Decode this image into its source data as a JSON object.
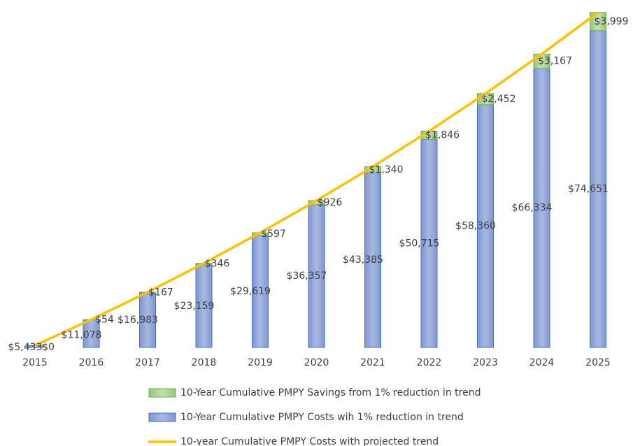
{
  "chart_data": {
    "type": "bar-line",
    "categories": [
      "2015",
      "2016",
      "2017",
      "2018",
      "2019",
      "2020",
      "2021",
      "2022",
      "2023",
      "2024",
      "2025"
    ],
    "series": [
      {
        "name": "10-Year Cumulative PMPY Savings from 1% reduction in trend",
        "color": "#a9d18e",
        "stack": "segment",
        "values": [
          0,
          54,
          167,
          346,
          597,
          926,
          1340,
          1846,
          2452,
          3167,
          3999
        ],
        "value_labels": [
          "$0",
          "$54",
          "$167",
          "$346",
          "$597",
          "$926",
          "$1,340",
          "$1,846",
          "$2,452",
          "$3,167",
          "$3,999"
        ]
      },
      {
        "name": "10-Year Cumulative PMPY Costs wih 1% reduction in trend",
        "color": "#8fa5d8",
        "stack": "base",
        "values": [
          5433,
          11078,
          16983,
          23159,
          29619,
          36357,
          43385,
          50715,
          58360,
          66334,
          74651
        ],
        "value_labels": [
          "$5,433",
          "$11,078",
          "$16,983",
          "$23,159",
          "$29,619",
          "$36,357",
          "$43,385",
          "$50,715",
          "$58,360",
          "$66,334",
          "$74,651"
        ]
      },
      {
        "name": "10-year Cumulative PMPY Costs with projected trend",
        "color": "#ffc000",
        "kind": "line",
        "values": [
          5433,
          11132,
          17150,
          23505,
          30216,
          37283,
          44725,
          52561,
          60812,
          69501,
          78650
        ]
      }
    ],
    "ylim": [
      5000,
      80000
    ]
  }
}
